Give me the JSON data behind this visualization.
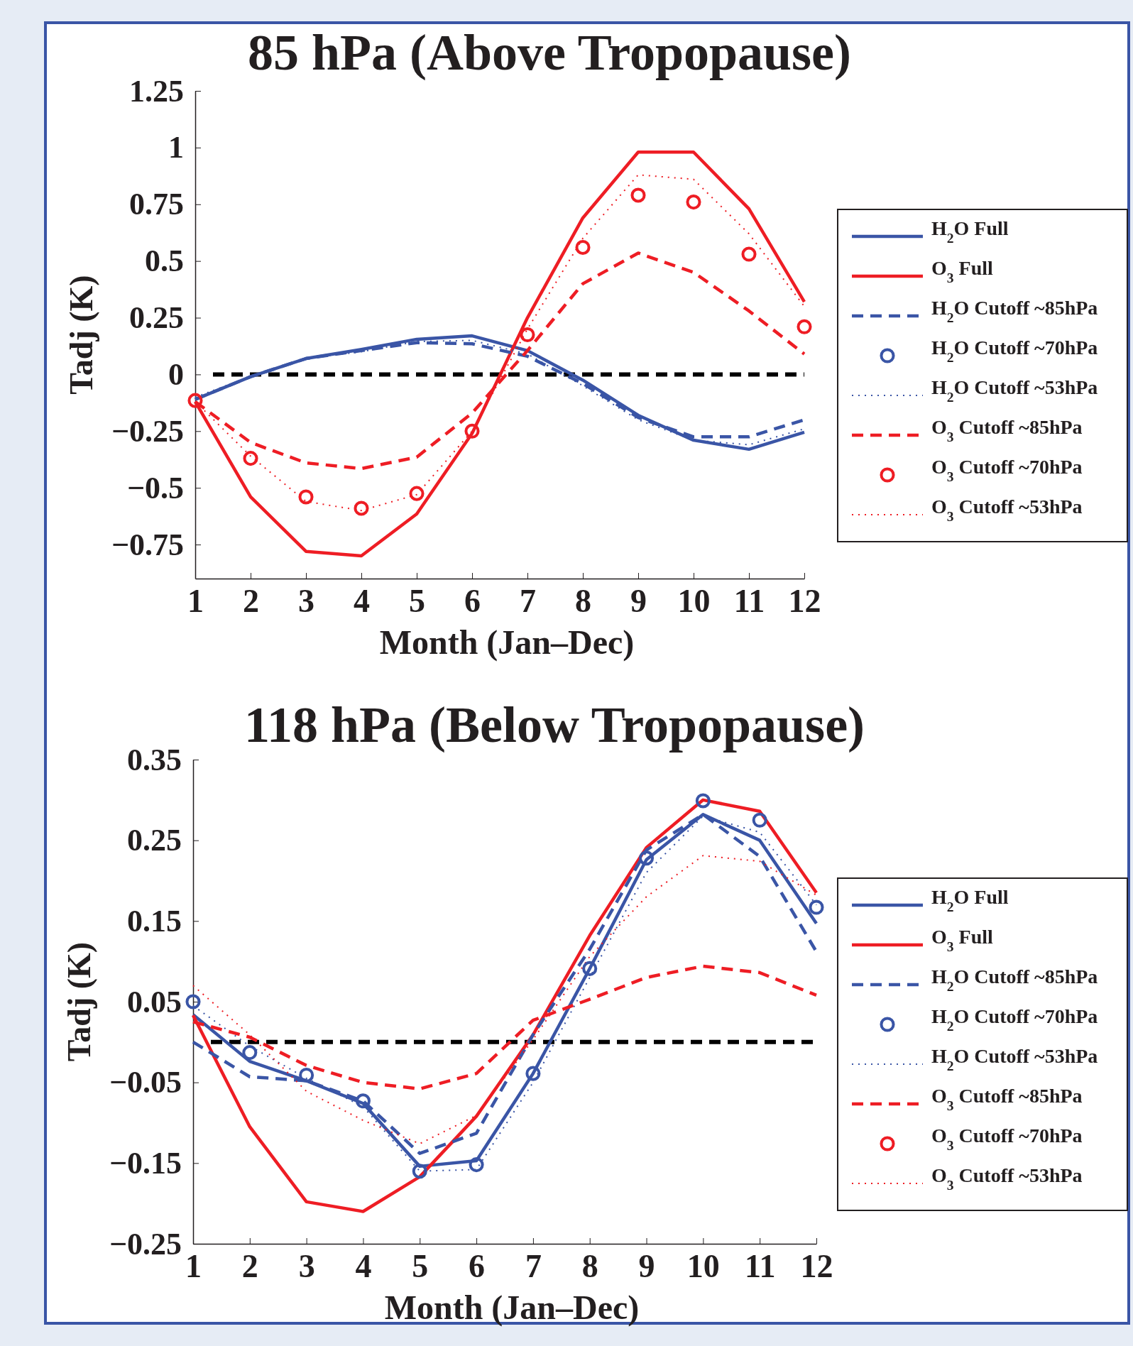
{
  "chart_data": [
    {
      "type": "line",
      "title": "85 hPa (Above Tropopause)",
      "xlabel": "Month (Jan–Dec)",
      "ylabel": "Tadj (K)",
      "x": [
        1,
        2,
        3,
        4,
        5,
        6,
        7,
        8,
        9,
        10,
        11,
        12
      ],
      "xlim": [
        1,
        12
      ],
      "xticks": [
        1,
        2,
        3,
        4,
        5,
        6,
        7,
        8,
        9,
        10,
        11,
        12
      ],
      "ylim": [
        -0.9,
        1.25
      ],
      "yticks": [
        1.25,
        1,
        0.75,
        0.5,
        0.25,
        0,
        {
          "value": -0.25,
          "label": "−0.25"
        },
        {
          "value": -0.5,
          "label": "−0.5"
        },
        {
          "value": -0.75,
          "label": "−0.75"
        }
      ],
      "grid": false,
      "legend": "right",
      "ref_lines": [
        {
          "axis": "y",
          "value": 0,
          "color": "#000000",
          "line_style": "dashed"
        }
      ],
      "series": [
        {
          "name": "H$_{2}$O Full",
          "type": "line",
          "line_style": "solid",
          "color": "#3a55a6",
          "values": [
            -0.11,
            -0.01,
            0.07,
            0.11,
            0.155,
            0.17,
            0.105,
            -0.025,
            -0.18,
            -0.29,
            -0.33,
            -0.255
          ]
        },
        {
          "name": "O$_{3}$ Full",
          "type": "line",
          "line_style": "solid",
          "color": "#ee1d24",
          "values": [
            -0.12,
            -0.54,
            -0.78,
            -0.8,
            -0.615,
            -0.26,
            0.25,
            0.69,
            0.98,
            0.98,
            0.73,
            0.32
          ]
        },
        {
          "name": "H$_{2}$O Cutoff ~85hPa",
          "type": "line",
          "line_style": "dashed",
          "color": "#3a55a6",
          "values": [
            -0.11,
            -0.01,
            0.07,
            0.105,
            0.14,
            0.135,
            0.08,
            -0.04,
            -0.19,
            -0.275,
            -0.275,
            -0.2
          ]
        },
        {
          "name": "H$_{2}$O Cutoff ~70hPa",
          "type": "scatter",
          "marker": "circle",
          "color": "#3a55a6",
          "values": [
            null,
            null,
            null,
            null,
            null,
            null,
            null,
            null,
            null,
            null,
            null,
            null
          ]
        },
        {
          "name": "H$_{2}$O Cutoff ~53hPa",
          "type": "line",
          "line_style": "dotted",
          "color": "#3a55a6",
          "values": [
            -0.1,
            -0.01,
            0.07,
            0.1,
            0.145,
            0.15,
            0.09,
            -0.05,
            -0.2,
            -0.29,
            -0.31,
            -0.24
          ]
        },
        {
          "name": "O$_{3}$ Cutoff ~85hPa",
          "type": "line",
          "line_style": "dashed",
          "color": "#ee1d24",
          "values": [
            -0.12,
            -0.3,
            -0.39,
            -0.415,
            -0.365,
            -0.17,
            0.105,
            0.4,
            0.535,
            0.45,
            0.28,
            0.09
          ]
        },
        {
          "name": "O$_{3}$ Cutoff ~70hPa",
          "type": "scatter",
          "marker": "circle",
          "color": "#ee1d24",
          "values": [
            -0.115,
            -0.37,
            -0.54,
            -0.59,
            -0.525,
            -0.25,
            0.175,
            0.56,
            0.79,
            0.76,
            0.53,
            0.21
          ]
        },
        {
          "name": "O$_{3}$ Cutoff ~53hPa",
          "type": "line",
          "line_style": "dotted",
          "color": "#ee1d24",
          "values": [
            -0.12,
            -0.36,
            -0.56,
            -0.6,
            -0.53,
            -0.25,
            0.2,
            0.6,
            0.88,
            0.86,
            0.62,
            0.3
          ]
        }
      ]
    },
    {
      "type": "line",
      "title": "118 hPa (Below Tropopause)",
      "xlabel": "Month (Jan–Dec)",
      "ylabel": "Tadj (K)",
      "x": [
        1,
        2,
        3,
        4,
        5,
        6,
        7,
        8,
        9,
        10,
        11,
        12
      ],
      "xlim": [
        1,
        12
      ],
      "xticks": [
        1,
        2,
        3,
        4,
        5,
        6,
        7,
        8,
        9,
        10,
        11,
        12
      ],
      "ylim": [
        -0.25,
        0.35
      ],
      "yticks": [
        0.35,
        0.25,
        0.15,
        0.05,
        {
          "value": -0.05,
          "label": "−0.05"
        },
        {
          "value": -0.15,
          "label": "−0.15"
        },
        {
          "value": -0.25,
          "label": "−0.25"
        }
      ],
      "grid": false,
      "legend": "right",
      "ref_lines": [
        {
          "axis": "y",
          "value": 0,
          "color": "#000000",
          "line_style": "dashed"
        }
      ],
      "series": [
        {
          "name": "H$_{2}$O Full",
          "type": "line",
          "line_style": "solid",
          "color": "#3a55a6",
          "values": [
            0.034,
            -0.024,
            -0.048,
            -0.076,
            -0.154,
            -0.147,
            -0.039,
            0.091,
            0.226,
            0.282,
            0.25,
            0.147
          ]
        },
        {
          "name": "O$_{3}$ Full",
          "type": "line",
          "line_style": "solid",
          "color": "#ee1d24",
          "values": [
            0.033,
            -0.105,
            -0.198,
            -0.21,
            -0.167,
            -0.092,
            0.009,
            0.132,
            0.241,
            0.3,
            0.286,
            0.185
          ]
        },
        {
          "name": "H$_{2}$O Cutoff ~85hPa",
          "type": "line",
          "line_style": "dashed",
          "color": "#3a55a6",
          "values": [
            0,
            -0.043,
            -0.048,
            -0.073,
            -0.138,
            -0.113,
            0.009,
            0.115,
            0.238,
            0.282,
            0.23,
            0.112
          ]
        },
        {
          "name": "H$_{2}$O Cutoff ~70hPa",
          "type": "scatter",
          "marker": "circle",
          "color": "#3a55a6",
          "values": [
            0.05,
            -0.013,
            -0.041,
            -0.073,
            -0.16,
            -0.152,
            -0.039,
            0.091,
            0.228,
            0.299,
            0.275,
            0.167
          ]
        },
        {
          "name": "H$_{2}$O Cutoff ~53hPa",
          "type": "line",
          "line_style": "dotted",
          "color": "#3a55a6",
          "values": [
            0.045,
            -0.005,
            -0.045,
            -0.08,
            -0.16,
            -0.158,
            -0.05,
            0.08,
            0.21,
            0.28,
            0.26,
            0.17
          ]
        },
        {
          "name": "O$_{3}$ Cutoff ~85hPa",
          "type": "line",
          "line_style": "dashed",
          "color": "#ee1d24",
          "values": [
            0.025,
            0.006,
            -0.029,
            -0.05,
            -0.058,
            -0.039,
            0.027,
            0.053,
            0.08,
            0.094,
            0.086,
            0.058
          ]
        },
        {
          "name": "O$_{3}$ Cutoff ~70hPa",
          "type": "scatter",
          "marker": "circle",
          "color": "#ee1d24",
          "values": [
            null,
            null,
            null,
            null,
            null,
            null,
            null,
            null,
            null,
            null,
            null,
            null
          ]
        },
        {
          "name": "O$_{3}$ Cutoff ~53hPa",
          "type": "line",
          "line_style": "dotted",
          "color": "#ee1d24",
          "values": [
            0.07,
            0.009,
            -0.061,
            -0.097,
            -0.126,
            -0.091,
            0.003,
            0.106,
            0.18,
            0.231,
            0.224,
            0.182
          ]
        }
      ]
    }
  ]
}
